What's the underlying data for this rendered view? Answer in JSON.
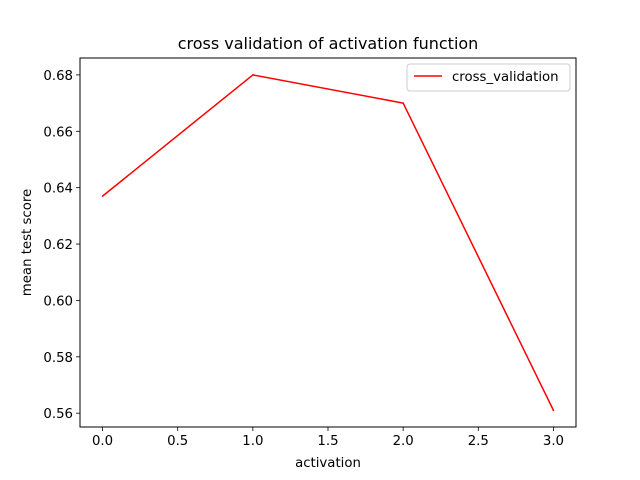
{
  "chart_data": {
    "type": "line",
    "title": "cross validation of activation function",
    "xlabel": "activation",
    "ylabel": "mean test score",
    "x": [
      0,
      1,
      2,
      3
    ],
    "series": [
      {
        "name": "cross_validation",
        "color": "#ff0000",
        "values": [
          0.637,
          0.68,
          0.67,
          0.561
        ]
      }
    ],
    "xlim": [
      -0.15,
      3.15
    ],
    "ylim": [
      0.5551,
      0.686
    ],
    "xticks": [
      0.0,
      0.5,
      1.0,
      1.5,
      2.0,
      2.5,
      3.0
    ],
    "xtick_labels": [
      "0.0",
      "0.5",
      "1.0",
      "1.5",
      "2.0",
      "2.5",
      "3.0"
    ],
    "yticks": [
      0.56,
      0.58,
      0.6,
      0.62,
      0.64,
      0.66,
      0.68
    ],
    "ytick_labels": [
      "0.56",
      "0.58",
      "0.60",
      "0.62",
      "0.64",
      "0.66",
      "0.68"
    ],
    "grid": false,
    "legend_position": "top-right"
  }
}
